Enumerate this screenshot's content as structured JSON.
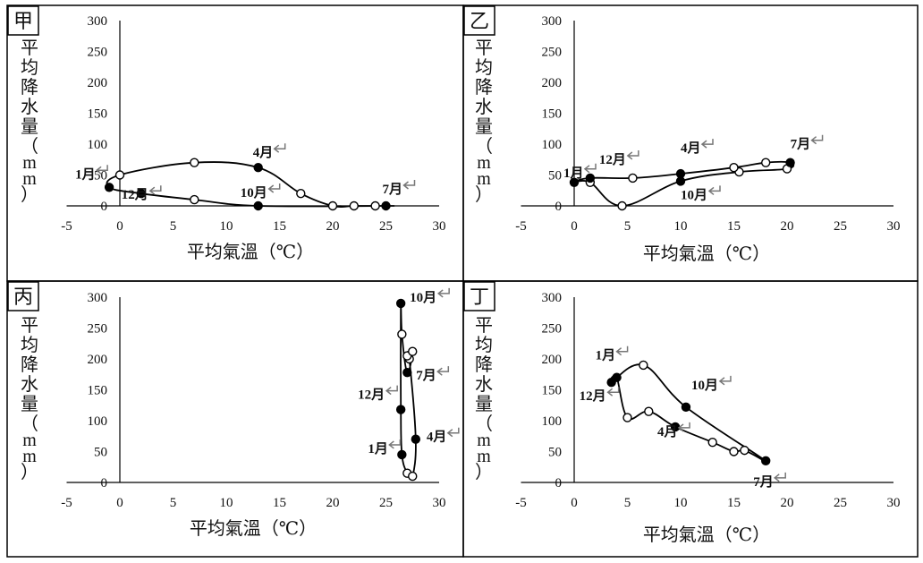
{
  "chart_data": [
    {
      "type": "scatter",
      "panel": "甲",
      "xlabel": "平均氣溫（℃）",
      "ylabel": "平均降水量（mm）",
      "xlim": [
        -5,
        30
      ],
      "ylim": [
        0,
        300
      ],
      "xticks": [
        -5,
        0,
        5,
        10,
        15,
        20,
        25,
        30
      ],
      "yticks": [
        0,
        50,
        100,
        150,
        200,
        250,
        300
      ],
      "points": [
        {
          "x": -1,
          "y": 30,
          "filled": true
        },
        {
          "x": 0,
          "y": 50,
          "filled": false
        },
        {
          "x": 7,
          "y": 70,
          "filled": false
        },
        {
          "x": 13,
          "y": 62,
          "filled": true
        },
        {
          "x": 17,
          "y": 20,
          "filled": false
        },
        {
          "x": 20,
          "y": 0,
          "filled": false
        },
        {
          "x": 22,
          "y": 0,
          "filled": false
        },
        {
          "x": 24,
          "y": 0,
          "filled": false
        },
        {
          "x": 25,
          "y": 0,
          "filled": true
        },
        {
          "x": 13,
          "y": 0,
          "filled": true
        },
        {
          "x": 7,
          "y": 10,
          "filled": false
        },
        {
          "x": 2,
          "y": 20,
          "filled": true
        }
      ],
      "annotations": [
        {
          "text": "1月",
          "x": -1,
          "y": 30
        },
        {
          "text": "4月",
          "x": 13,
          "y": 62
        },
        {
          "text": "7月",
          "x": 25,
          "y": 0
        },
        {
          "text": "10月",
          "x": 13,
          "y": 0
        },
        {
          "text": "12月",
          "x": 2,
          "y": 20
        }
      ]
    },
    {
      "type": "scatter",
      "panel": "乙",
      "xlabel": "平均氣溫（℃）",
      "ylabel": "平均降水量（mm）",
      "xlim": [
        -5,
        30
      ],
      "ylim": [
        0,
        300
      ],
      "xticks": [
        -5,
        0,
        5,
        10,
        15,
        20,
        25,
        30
      ],
      "yticks": [
        0,
        50,
        100,
        150,
        200,
        250,
        300
      ],
      "points": [
        {
          "x": 0,
          "y": 38,
          "filled": true
        },
        {
          "x": 1.5,
          "y": 38,
          "filled": false
        },
        {
          "x": 4.5,
          "y": 0,
          "filled": false
        },
        {
          "x": 10,
          "y": 40,
          "filled": true
        },
        {
          "x": 15.5,
          "y": 55,
          "filled": false
        },
        {
          "x": 20,
          "y": 60,
          "filled": false
        },
        {
          "x": 20.3,
          "y": 70,
          "filled": true
        },
        {
          "x": 18,
          "y": 70,
          "filled": false
        },
        {
          "x": 15,
          "y": 62,
          "filled": false
        },
        {
          "x": 10,
          "y": 52,
          "filled": true
        },
        {
          "x": 5.5,
          "y": 45,
          "filled": false
        },
        {
          "x": 1.5,
          "y": 45,
          "filled": true
        }
      ],
      "annotations": [
        {
          "text": "1月",
          "x": 0,
          "y": 38
        },
        {
          "text": "4月",
          "x": 10,
          "y": 52
        },
        {
          "text": "7月",
          "x": 20.3,
          "y": 70
        },
        {
          "text": "10月",
          "x": 10,
          "y": 40
        },
        {
          "text": "12月",
          "x": 1.5,
          "y": 45
        }
      ]
    },
    {
      "type": "scatter",
      "panel": "丙",
      "xlabel": "平均氣溫（℃）",
      "ylabel": "平均降水量（mm）",
      "xlim": [
        -5,
        30
      ],
      "ylim": [
        0,
        300
      ],
      "xticks": [
        -5,
        0,
        5,
        10,
        15,
        20,
        25,
        30
      ],
      "yticks": [
        0,
        50,
        100,
        150,
        200,
        250,
        300
      ],
      "points": [
        {
          "x": 26.5,
          "y": 45,
          "filled": true
        },
        {
          "x": 27,
          "y": 15,
          "filled": false
        },
        {
          "x": 27.5,
          "y": 10,
          "filled": false
        },
        {
          "x": 27.8,
          "y": 70,
          "filled": true
        },
        {
          "x": 27.2,
          "y": 200,
          "filled": false
        },
        {
          "x": 27,
          "y": 205,
          "filled": false
        },
        {
          "x": 27.5,
          "y": 212,
          "filled": false
        },
        {
          "x": 27,
          "y": 178,
          "filled": true
        },
        {
          "x": 26.5,
          "y": 240,
          "filled": false
        },
        {
          "x": 26.4,
          "y": 290,
          "filled": true
        },
        {
          "x": 26.4,
          "y": 118,
          "filled": true
        }
      ],
      "annotations": [
        {
          "text": "1月",
          "x": 26.5,
          "y": 45
        },
        {
          "text": "4月",
          "x": 27.8,
          "y": 70
        },
        {
          "text": "7月",
          "x": 27,
          "y": 178
        },
        {
          "text": "10月",
          "x": 26.4,
          "y": 290
        },
        {
          "text": "12月",
          "x": 26.4,
          "y": 118
        }
      ]
    },
    {
      "type": "scatter",
      "panel": "丁",
      "xlabel": "平均氣溫（℃）",
      "ylabel": "平均降水量（mm）",
      "xlim": [
        -5,
        30
      ],
      "ylim": [
        0,
        300
      ],
      "xticks": [
        -5,
        0,
        5,
        10,
        15,
        20,
        25,
        30
      ],
      "yticks": [
        0,
        50,
        100,
        150,
        200,
        250,
        300
      ],
      "points": [
        {
          "x": 4,
          "y": 170,
          "filled": true
        },
        {
          "x": 5,
          "y": 105,
          "filled": false
        },
        {
          "x": 7,
          "y": 115,
          "filled": false
        },
        {
          "x": 9.5,
          "y": 90,
          "filled": true
        },
        {
          "x": 13,
          "y": 65,
          "filled": false
        },
        {
          "x": 15,
          "y": 50,
          "filled": false
        },
        {
          "x": 16,
          "y": 52,
          "filled": false
        },
        {
          "x": 18,
          "y": 35,
          "filled": true
        },
        {
          "x": 10.5,
          "y": 122,
          "filled": true
        },
        {
          "x": 6.5,
          "y": 190,
          "filled": false
        },
        {
          "x": 3.5,
          "y": 162,
          "filled": true
        }
      ],
      "annotations": [
        {
          "text": "1月",
          "x": 4,
          "y": 170
        },
        {
          "text": "4月",
          "x": 9.5,
          "y": 90
        },
        {
          "text": "7月",
          "x": 18,
          "y": 35
        },
        {
          "text": "10月",
          "x": 10.5,
          "y": 122
        },
        {
          "text": "12月",
          "x": 3.5,
          "y": 162
        }
      ]
    }
  ]
}
